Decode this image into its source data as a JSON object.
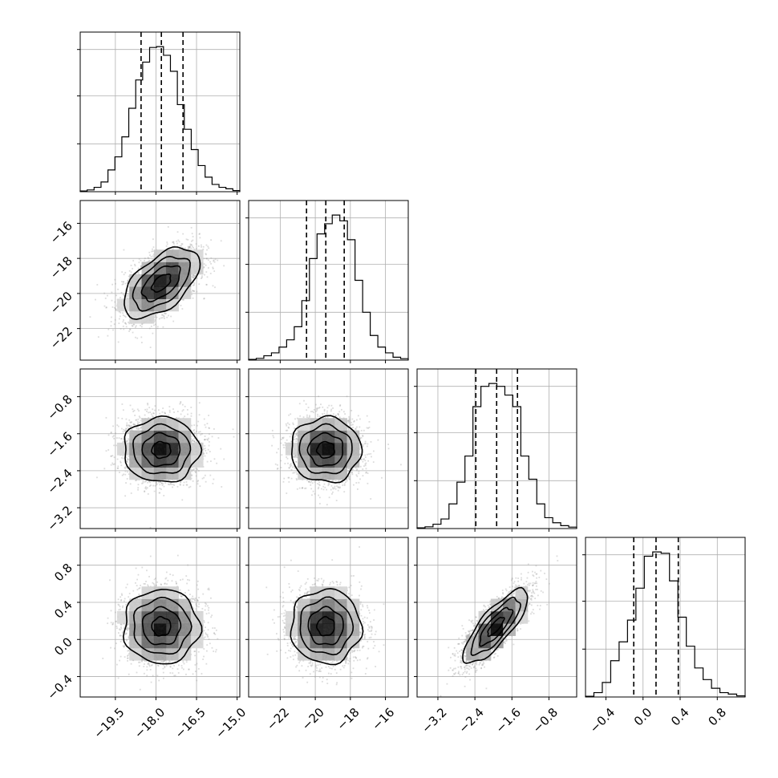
{
  "chart_data": {
    "type": "corner",
    "parameters": [
      {
        "ticks": [
          -19.5,
          -18.0,
          -16.5,
          -15.0
        ],
        "tick_labels": [
          "−19.5",
          "−18.0",
          "−16.5",
          "−15.0"
        ],
        "range": [
          -20.8,
          -14.9
        ],
        "hist": [
          0.005,
          0.012,
          0.03,
          0.067,
          0.15,
          0.24,
          0.378,
          0.575,
          0.77,
          0.893,
          0.994,
          1.0,
          0.94,
          0.83,
          0.6,
          0.43,
          0.29,
          0.18,
          0.1,
          0.05,
          0.03,
          0.02,
          0.008
        ],
        "quantiles": [
          -18.55,
          -17.8,
          -17.0
        ]
      },
      {
        "ticks": [
          -22,
          -20,
          -18,
          -16
        ],
        "tick_labels": [
          "−22",
          "−20",
          "−18",
          "−16"
        ],
        "range": [
          -23.8,
          -14.7
        ],
        "hist": [
          0.005,
          0.012,
          0.03,
          0.05,
          0.09,
          0.14,
          0.23,
          0.41,
          0.7,
          0.87,
          0.94,
          1.0,
          0.96,
          0.83,
          0.55,
          0.33,
          0.17,
          0.09,
          0.05,
          0.02,
          0.01
        ],
        "quantiles": [
          -20.5,
          -19.4,
          -18.35
        ]
      },
      {
        "ticks": [
          -3.2,
          -2.4,
          -1.6,
          -0.8
        ],
        "tick_labels": [
          "−3.2",
          "−2.4",
          "−1.6",
          "−0.8"
        ],
        "range": [
          -3.65,
          -0.2
        ],
        "hist": [
          0.005,
          0.012,
          0.03,
          0.066,
          0.17,
          0.32,
          0.5,
          0.84,
          0.98,
          1.0,
          0.98,
          0.92,
          0.84,
          0.5,
          0.34,
          0.17,
          0.075,
          0.04,
          0.02,
          0.01
        ],
        "quantiles": [
          -2.38,
          -1.93,
          -1.48
        ]
      },
      {
        "ticks": [
          -0.4,
          0.0,
          0.4,
          0.8
        ],
        "tick_labels": [
          "−0.4",
          "0.0",
          "0.4",
          "0.8"
        ],
        "range": [
          -0.62,
          1.1
        ],
        "hist": [
          0.005,
          0.03,
          0.1,
          0.25,
          0.38,
          0.53,
          0.75,
          0.97,
          1.0,
          0.99,
          0.8,
          0.55,
          0.35,
          0.2,
          0.12,
          0.06,
          0.03,
          0.02,
          0.008
        ],
        "quantiles": [
          -0.1,
          0.14,
          0.38
        ]
      }
    ],
    "pairs": [
      {
        "row": 1,
        "col": 0,
        "mean": [
          -17.8,
          -19.4
        ],
        "sd": [
          0.7,
          1.0
        ],
        "corr": 0.55
      },
      {
        "row": 2,
        "col": 0,
        "mean": [
          -17.8,
          -1.95
        ],
        "sd": [
          0.7,
          0.35
        ],
        "corr": 0.0
      },
      {
        "row": 2,
        "col": 1,
        "mean": [
          -19.4,
          -1.95
        ],
        "sd": [
          1.0,
          0.35
        ],
        "corr": 0.0
      },
      {
        "row": 3,
        "col": 0,
        "mean": [
          -17.8,
          0.14
        ],
        "sd": [
          0.7,
          0.2
        ],
        "corr": 0.0
      },
      {
        "row": 3,
        "col": 1,
        "mean": [
          -19.4,
          0.14
        ],
        "sd": [
          1.0,
          0.2
        ],
        "corr": 0.0
      },
      {
        "row": 3,
        "col": 2,
        "mean": [
          -1.95,
          0.14
        ],
        "sd": [
          0.35,
          0.2
        ],
        "corr": 0.8
      }
    ],
    "contour_levels_sigma": [
      0.5,
      1.0,
      1.5,
      2.0
    ],
    "grid": true,
    "title": "",
    "xlabel": "",
    "ylabel": ""
  }
}
